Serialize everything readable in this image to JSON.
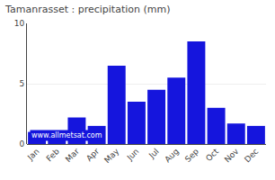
{
  "chart_data": {
    "type": "bar",
    "title": "Tamanrasset : precipitation (mm)",
    "categories": [
      "Jan",
      "Feb",
      "Mar",
      "Apr",
      "May",
      "Jun",
      "Jul",
      "Aug",
      "Sep",
      "Oct",
      "Nov",
      "Dec"
    ],
    "values": [
      1.0,
      1.0,
      2.2,
      1.5,
      6.5,
      3.5,
      4.5,
      5.5,
      8.5,
      3.0,
      1.7,
      1.5
    ],
    "color": "#1515dd",
    "ylim": [
      0,
      10
    ],
    "yticks": [
      0,
      5,
      10
    ],
    "grid": true,
    "annotations": [
      "www.allmetsat.com"
    ]
  }
}
